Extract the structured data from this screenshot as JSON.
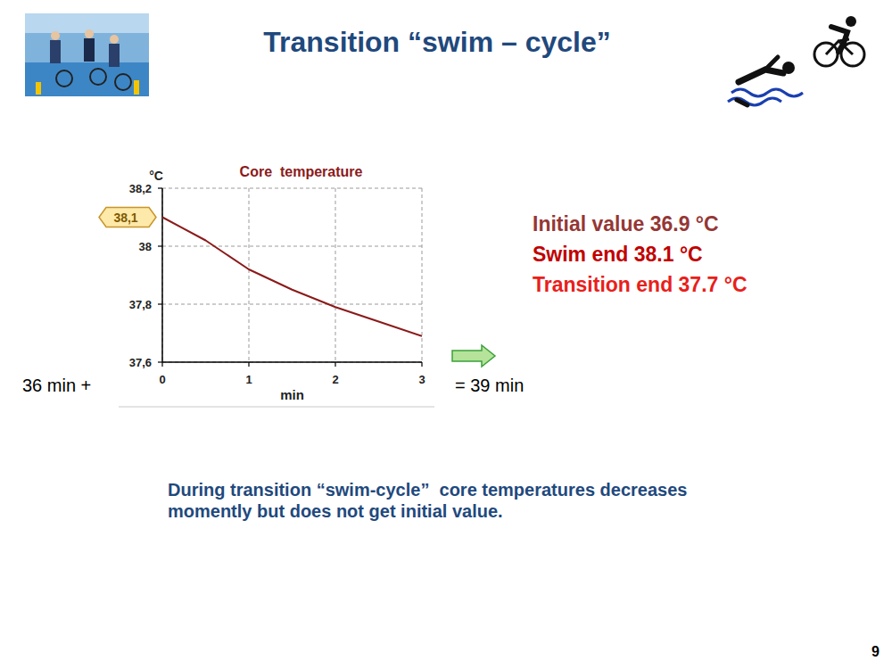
{
  "chart_data": {
    "type": "line",
    "title": "Core  temperature",
    "y_label": "°C",
    "x_label": "min",
    "x": [
      0,
      0.5,
      1,
      1.5,
      2,
      2.5,
      3
    ],
    "values": [
      38.1,
      38.02,
      37.92,
      37.85,
      37.79,
      37.74,
      37.69
    ],
    "color": "#8b1a1a",
    "xlim": [
      0,
      3
    ],
    "xticks": [
      0,
      1,
      2,
      3
    ],
    "ylim": [
      37.6,
      38.2
    ],
    "yticks": [
      {
        "value": 37.6,
        "label": "37,6"
      },
      {
        "value": 37.8,
        "label": "37,8"
      },
      {
        "value": 38,
        "label": "38"
      },
      {
        "value": 38.2,
        "label": "38,2"
      }
    ],
    "grid": true,
    "annotations": [
      {
        "x": 0,
        "y": 38.1,
        "label": "38,1"
      }
    ]
  },
  "slide": {
    "title": "Transition “swim – cycle”",
    "left_text": "36 min +",
    "right_text": "= 39 min",
    "facts": [
      "Initial value 36.9 °C",
      "Swim end 38.1 °C",
      "Transition end 37.7 °C"
    ],
    "note": [
      "During transition “swim-cycle”  core temperatures decreases",
      "momently but does not get initial value."
    ],
    "page": "9"
  }
}
